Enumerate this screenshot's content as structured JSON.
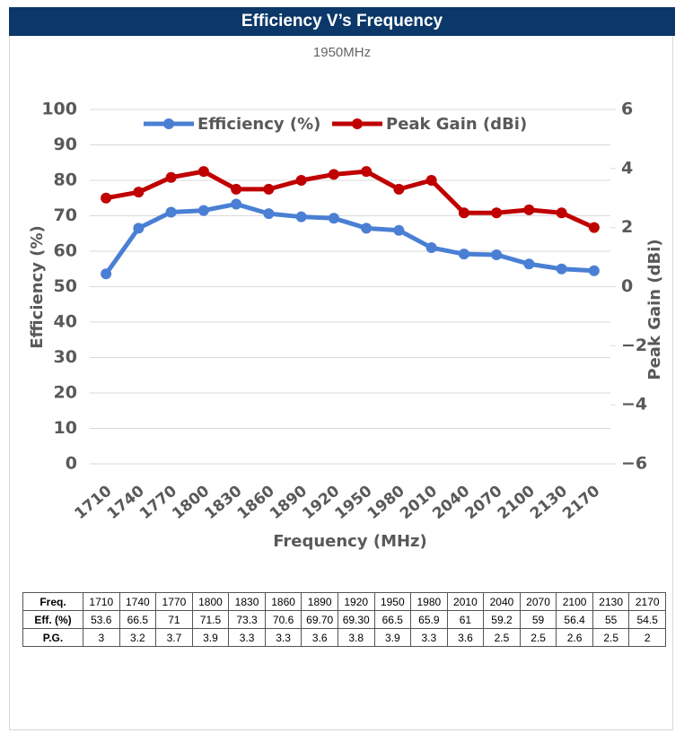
{
  "chart_data": {
    "type": "line",
    "title": "Efficiency V’s Frequency",
    "subtitle": "1950MHz",
    "x_label": "Frequency (MHz)",
    "y_label": "Efficiency  (%)",
    "y2_label": "Peak Gain (dBi)",
    "categories": [
      "1710",
      "1740",
      "1770",
      "1800",
      "1830",
      "1860",
      "1890",
      "1920",
      "1950",
      "1980",
      "2010",
      "2040",
      "2070",
      "2100",
      "2130",
      "2170"
    ],
    "series": [
      {
        "name": "Efficiency (%)",
        "color": "#4a7fd4",
        "values": [
          53.6,
          66.5,
          71,
          71.5,
          73.3,
          70.6,
          69.7,
          69.3,
          66.5,
          65.9,
          61,
          59.2,
          59,
          56.4,
          55,
          54.5
        ]
      },
      {
        "name": "Peak Gain (dBi)",
        "color": "#c00000",
        "axis": "y2",
        "values": [
          3,
          3.2,
          3.7,
          3.9,
          3.3,
          3.3,
          3.6,
          3.8,
          3.9,
          3.3,
          3.6,
          2.5,
          2.5,
          2.6,
          2.5,
          2
        ]
      }
    ],
    "ylim": [
      0,
      100
    ],
    "yticks": [
      0,
      10,
      20,
      30,
      40,
      50,
      60,
      70,
      80,
      90,
      100
    ],
    "y2lim": [
      -6,
      6
    ],
    "y2ticks": [
      {
        "value": -6,
        "label": "−6"
      },
      {
        "value": -4,
        "label": "−4"
      },
      {
        "value": -2,
        "label": "−2"
      },
      0,
      2,
      4,
      6
    ],
    "grid": true,
    "legend": "top"
  },
  "table": {
    "rows": [
      [
        "Freq.",
        "1710",
        "1740",
        "1770",
        "1800",
        "1830",
        "1860",
        "1890",
        "1920",
        "1950",
        "1980",
        "2010",
        "2040",
        "2070",
        "2100",
        "2130",
        "2170"
      ],
      [
        "Eff. (%)",
        "53.6",
        "66.5",
        "71",
        "71.5",
        "73.3",
        "70.6",
        "69.70",
        "69.30",
        "66.5",
        "65.9",
        "61",
        "59.2",
        "59",
        "56.4",
        "55",
        "54.5"
      ],
      [
        "P.G.",
        "3",
        "3.2",
        "3.7",
        "3.9",
        "3.3",
        "3.3",
        "3.6",
        "3.8",
        "3.9",
        "3.3",
        "3.6",
        "2.5",
        "2.5",
        "2.6",
        "2.5",
        "2"
      ]
    ]
  }
}
